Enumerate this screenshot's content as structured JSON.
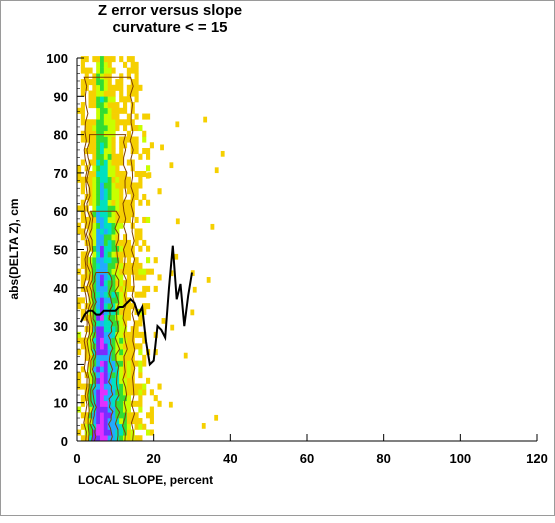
{
  "chart_data": {
    "type": "heatmap",
    "title": [
      "Z error versus slope",
      "curvature < = 15"
    ],
    "xlabel": "LOCAL SLOPE, percent",
    "ylabel": "abs(DELTA Z), cm",
    "xlim": [
      0,
      120
    ],
    "ylim": [
      0,
      100
    ],
    "xticks": [
      "0",
      "20",
      "40",
      "60",
      "80",
      "100",
      "120"
    ],
    "yticks": [
      "0",
      "10",
      "20",
      "30",
      "40",
      "50",
      "60",
      "70",
      "80",
      "90",
      "100"
    ],
    "grid": false,
    "colors": {
      "density_low": "#f5d000",
      "density_2": "#c8ff00",
      "density_3": "#33dd33",
      "density_4": "#00e0c0",
      "density_5": "#22aaff",
      "density_6": "#7a2cff",
      "density_high": "#e030ff",
      "contour": "#804000",
      "mean_line": "#000000"
    },
    "density": {
      "cell_x_percent": 1,
      "cell_y_cm": 1.5,
      "core_slope_range": [
        2,
        14
      ],
      "peak_slope": 6
    },
    "mean_line": {
      "x": [
        1,
        2,
        3,
        4,
        5,
        6,
        7,
        8,
        9,
        10,
        11,
        12,
        13,
        14,
        15,
        16,
        17,
        18,
        19,
        20,
        21,
        22,
        23,
        24,
        25,
        26,
        27,
        28,
        29,
        30
      ],
      "y": [
        31,
        33,
        34,
        34,
        33,
        33,
        34,
        34,
        34,
        34,
        35,
        35,
        36,
        37,
        36,
        33,
        35,
        26,
        20,
        21,
        30,
        29,
        27,
        40,
        51,
        37,
        41,
        30,
        38,
        44
      ]
    }
  }
}
